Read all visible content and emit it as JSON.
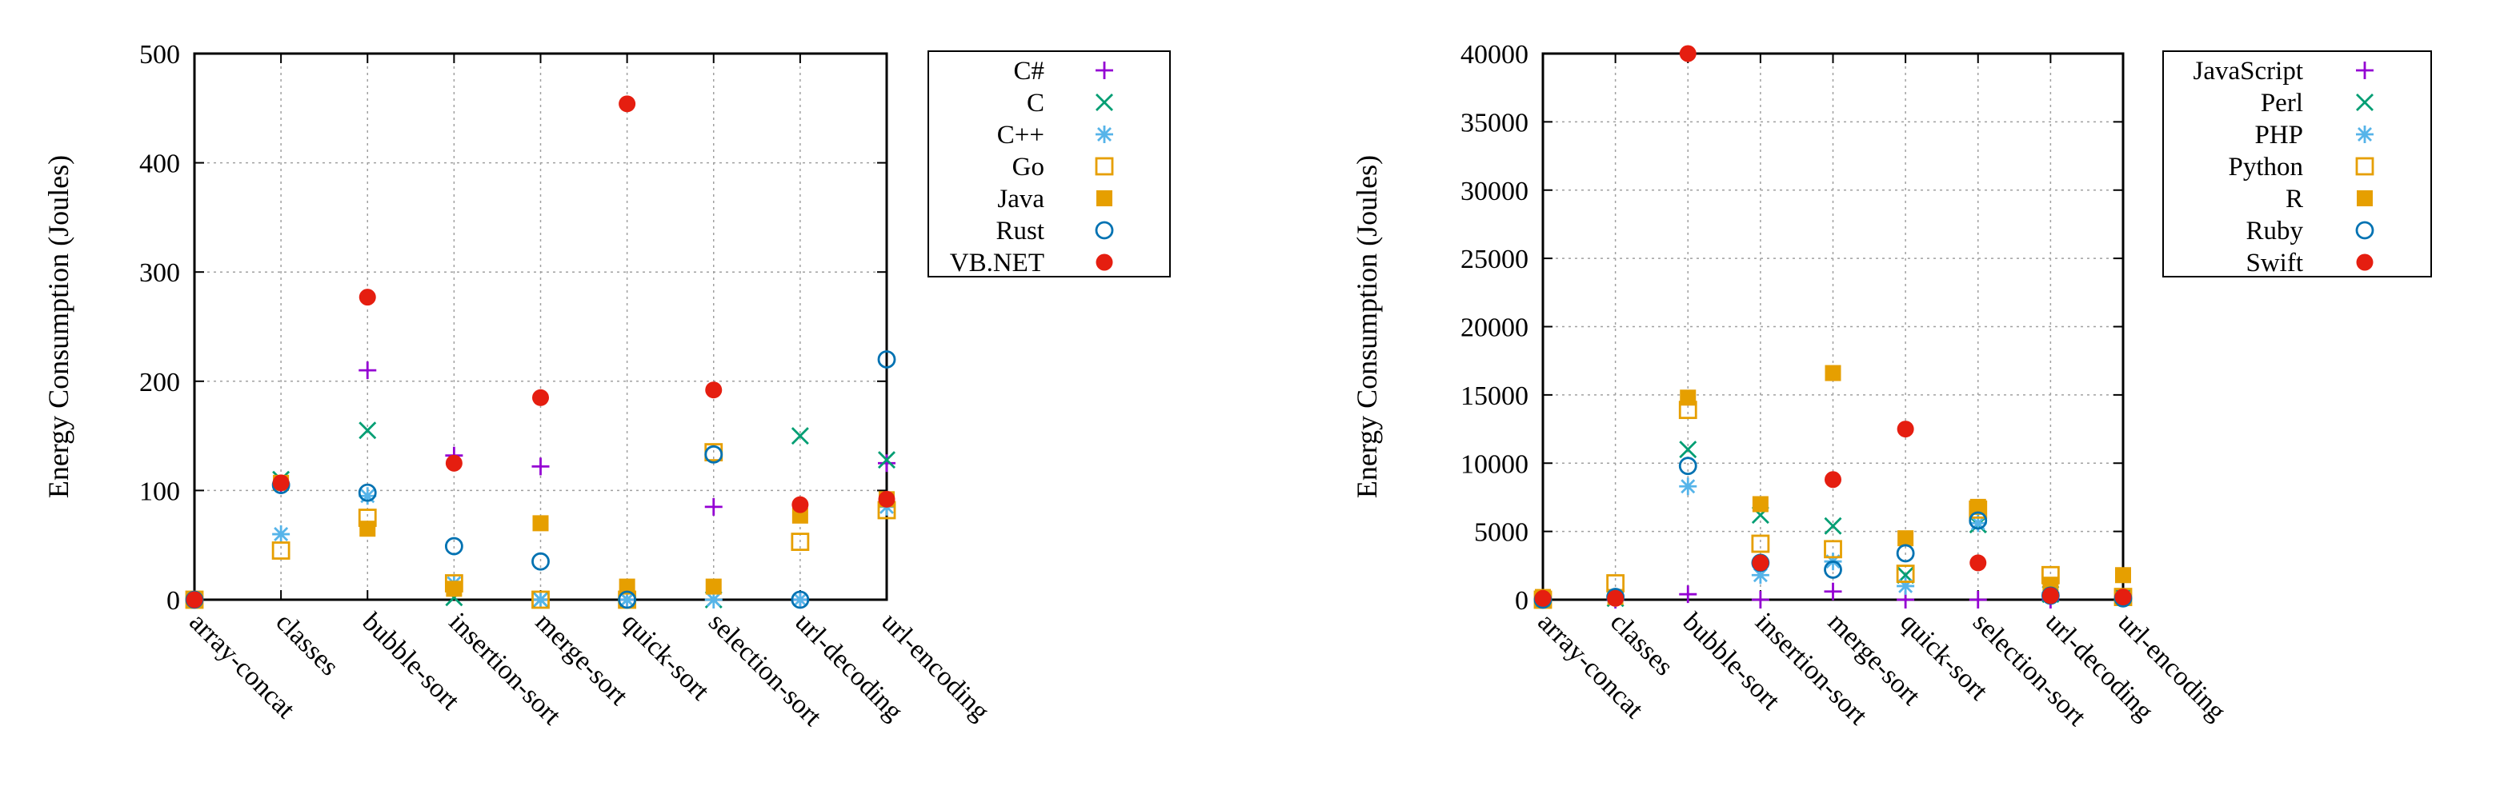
{
  "chart_data": [
    {
      "type": "scatter",
      "xlabel": "",
      "ylabel": "Energy Consumption (Joules)",
      "ylim": [
        0,
        500
      ],
      "yticks": [
        0,
        100,
        200,
        300,
        400,
        500
      ],
      "grid": true,
      "legend_position": "outside-right",
      "categories": [
        "array-concat",
        "classes",
        "bubble-sort",
        "insertion-sort",
        "merge-sort",
        "quick-sort",
        "selection-sort",
        "url-decoding",
        "url-encoding"
      ],
      "series": [
        {
          "name": "C#",
          "marker": "plus",
          "color": "#9400d3",
          "values": [
            0,
            105,
            210,
            132,
            122,
            0,
            85,
            0,
            125
          ]
        },
        {
          "name": "C",
          "marker": "cross",
          "color": "#009e73",
          "values": [
            0,
            110,
            155,
            2,
            0,
            0,
            0,
            150,
            128
          ]
        },
        {
          "name": "C++",
          "marker": "star",
          "color": "#56b4e9",
          "values": [
            0,
            60,
            95,
            15,
            0,
            0,
            0,
            0,
            85
          ]
        },
        {
          "name": "Go",
          "marker": "square-open",
          "color": "#e69f00",
          "values": [
            0,
            45,
            75,
            15,
            0,
            0,
            135,
            53,
            82
          ]
        },
        {
          "name": "Java",
          "marker": "square-filled",
          "color": "#e69f00",
          "values": [
            0,
            107,
            65,
            10,
            70,
            12,
            12,
            77,
            92
          ]
        },
        {
          "name": "Rust",
          "marker": "circle-open",
          "color": "#0072b2",
          "values": [
            0,
            105,
            98,
            49,
            35,
            0,
            133,
            0,
            220
          ]
        },
        {
          "name": "VB.NET",
          "marker": "circle-filled",
          "color": "#e51e10",
          "values": [
            0,
            107,
            277,
            125,
            185,
            454,
            192,
            87,
            92
          ]
        }
      ]
    },
    {
      "type": "scatter",
      "xlabel": "",
      "ylabel": "Energy Consumption (Joules)",
      "ylim": [
        0,
        40000
      ],
      "yticks": [
        0,
        5000,
        10000,
        15000,
        20000,
        25000,
        30000,
        35000,
        40000
      ],
      "grid": true,
      "legend_position": "outside-right",
      "categories": [
        "array-concat",
        "classes",
        "bubble-sort",
        "insertion-sort",
        "merge-sort",
        "quick-sort",
        "selection-sort",
        "url-decoding",
        "url-encoding"
      ],
      "series": [
        {
          "name": "JavaScript",
          "marker": "plus",
          "color": "#9400d3",
          "values": [
            0,
            0,
            400,
            0,
            600,
            0,
            0,
            0,
            100
          ]
        },
        {
          "name": "Perl",
          "marker": "cross",
          "color": "#009e73",
          "values": [
            0,
            100,
            11000,
            6200,
            5400,
            1800,
            5500,
            400,
            200
          ]
        },
        {
          "name": "PHP",
          "marker": "star",
          "color": "#56b4e9",
          "values": [
            0,
            100,
            8300,
            1800,
            2800,
            1000,
            5600,
            500,
            100
          ]
        },
        {
          "name": "Python",
          "marker": "square-open",
          "color": "#e69f00",
          "values": [
            0,
            1200,
            13900,
            4100,
            3700,
            1900,
            6600,
            1800,
            200
          ]
        },
        {
          "name": "R",
          "marker": "square-filled",
          "color": "#e69f00",
          "values": [
            200,
            200,
            14800,
            7000,
            16600,
            4500,
            6800,
            1100,
            1800
          ]
        },
        {
          "name": "Ruby",
          "marker": "circle-open",
          "color": "#0072b2",
          "values": [
            0,
            200,
            9800,
            2700,
            2200,
            3400,
            5800,
            300,
            100
          ]
        },
        {
          "name": "Swift",
          "marker": "circle-filled",
          "color": "#e51e10",
          "values": [
            100,
            100,
            40200,
            2700,
            8800,
            12500,
            2700,
            300,
            200
          ]
        }
      ]
    }
  ]
}
